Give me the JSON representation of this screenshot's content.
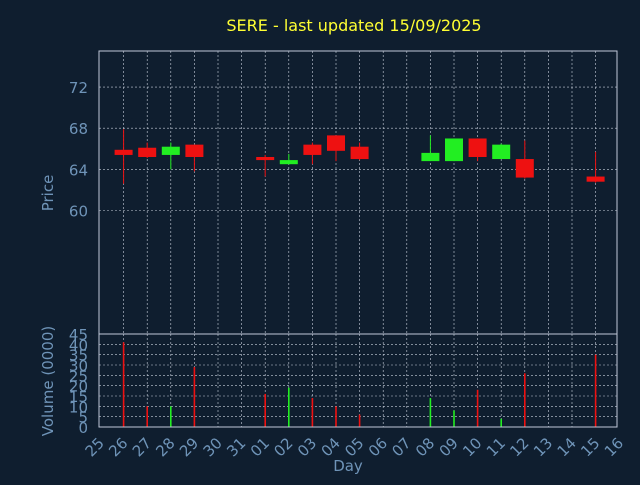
{
  "colors": {
    "background": "#0f1e2f",
    "frame": "#c0c8d8",
    "grid": "#c8d0dc",
    "title": "#ffff33",
    "axis_text": "#6f94b8",
    "up": "#22ee22",
    "down": "#ee1111"
  },
  "chart_data": [
    {
      "type": "candlestick",
      "title": "SERE - last updated 15/09/2025",
      "ylabel": "Price",
      "ylim": [
        48,
        75.5
      ],
      "yticks": [
        60,
        64,
        68,
        72
      ],
      "grid": true,
      "x_categories": [
        "25",
        "26",
        "27",
        "28",
        "29",
        "30",
        "31",
        "01",
        "02",
        "03",
        "04",
        "05",
        "06",
        "07",
        "08",
        "09",
        "10",
        "11",
        "12",
        "13",
        "14",
        "15",
        "16"
      ],
      "candles": [
        {
          "day": "26",
          "open": 65.9,
          "high": 67.9,
          "low": 62.6,
          "close": 65.4
        },
        {
          "day": "27",
          "open": 66.1,
          "high": 66.6,
          "low": 65.1,
          "close": 65.2
        },
        {
          "day": "28",
          "open": 65.4,
          "high": 66.6,
          "low": 64.0,
          "close": 66.2
        },
        {
          "day": "29",
          "open": 66.4,
          "high": 66.4,
          "low": 63.8,
          "close": 65.2
        },
        {
          "day": "01",
          "open": 65.2,
          "high": 65.4,
          "low": 63.3,
          "close": 64.9
        },
        {
          "day": "02",
          "open": 64.5,
          "high": 65.5,
          "low": 64.5,
          "close": 64.9
        },
        {
          "day": "03",
          "open": 66.4,
          "high": 66.6,
          "low": 64.5,
          "close": 65.4
        },
        {
          "day": "04",
          "open": 67.3,
          "high": 67.3,
          "low": 64.8,
          "close": 65.8
        },
        {
          "day": "05",
          "open": 66.2,
          "high": 66.6,
          "low": 64.9,
          "close": 65.0
        },
        {
          "day": "08",
          "open": 64.8,
          "high": 67.3,
          "low": 64.8,
          "close": 65.6
        },
        {
          "day": "09",
          "open": 64.8,
          "high": 67.0,
          "low": 64.8,
          "close": 67.0
        },
        {
          "day": "10",
          "open": 67.0,
          "high": 67.0,
          "low": 64.8,
          "close": 65.2
        },
        {
          "day": "11",
          "open": 65.0,
          "high": 66.5,
          "low": 65.0,
          "close": 66.4
        },
        {
          "day": "12",
          "open": 65.0,
          "high": 66.8,
          "low": 63.1,
          "close": 63.2
        },
        {
          "day": "15",
          "open": 63.3,
          "high": 65.7,
          "low": 62.7,
          "close": 62.8
        }
      ]
    },
    {
      "type": "bar",
      "ylabel": "Volume (0000)",
      "xlabel": "Day",
      "ylim": [
        0,
        45
      ],
      "ytick_labels": [
        "0",
        "5",
        "10",
        "15",
        "20",
        "25",
        "30",
        "35",
        "40",
        "45"
      ],
      "x_categories": [
        "25",
        "26",
        "27",
        "28",
        "29",
        "30",
        "31",
        "01",
        "02",
        "03",
        "04",
        "05",
        "06",
        "07",
        "08",
        "09",
        "10",
        "11",
        "12",
        "13",
        "14",
        "15",
        "16"
      ],
      "bars": [
        {
          "day": "26",
          "value": 41,
          "direction": "down"
        },
        {
          "day": "27",
          "value": 10,
          "direction": "down"
        },
        {
          "day": "28",
          "value": 10,
          "direction": "up"
        },
        {
          "day": "29",
          "value": 29,
          "direction": "down"
        },
        {
          "day": "01",
          "value": 16,
          "direction": "down"
        },
        {
          "day": "02",
          "value": 19,
          "direction": "up"
        },
        {
          "day": "03",
          "value": 14,
          "direction": "down"
        },
        {
          "day": "04",
          "value": 10,
          "direction": "down"
        },
        {
          "day": "05",
          "value": 6,
          "direction": "down"
        },
        {
          "day": "08",
          "value": 14,
          "direction": "up"
        },
        {
          "day": "09",
          "value": 8,
          "direction": "up"
        },
        {
          "day": "10",
          "value": 18,
          "direction": "down"
        },
        {
          "day": "11",
          "value": 4,
          "direction": "up"
        },
        {
          "day": "12",
          "value": 26,
          "direction": "down"
        },
        {
          "day": "15",
          "value": 35,
          "direction": "down"
        }
      ]
    }
  ]
}
